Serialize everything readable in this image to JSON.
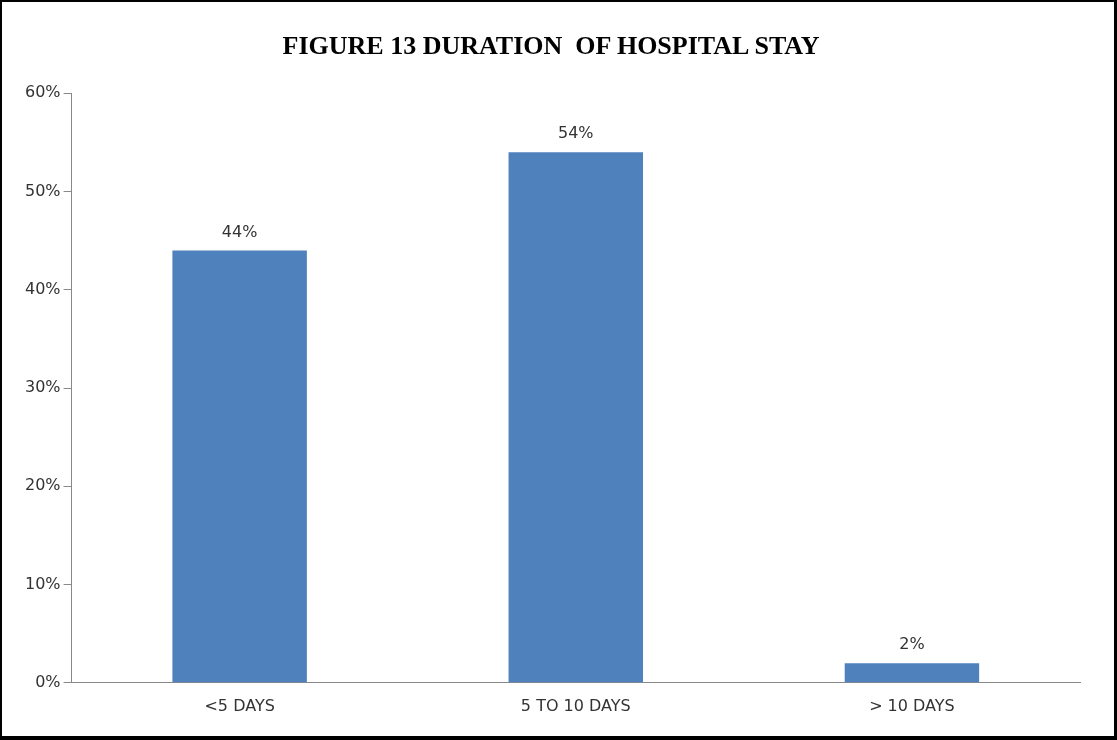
{
  "chart_data": {
    "type": "bar",
    "title": "FIGURE 13 DURATION  OF HOSPITAL STAY",
    "categories": [
      "<5 DAYS",
      "5 TO 10 DAYS",
      "> 10 DAYS"
    ],
    "values": [
      44,
      54,
      2
    ],
    "color": "#4f81bd",
    "value_labels": [
      "44%",
      "54%",
      "2%"
    ],
    "ylim": [
      0,
      60
    ],
    "yticks": [
      {
        "value": 0,
        "label": "0%"
      },
      {
        "value": 10,
        "label": "10%"
      },
      {
        "value": 20,
        "label": "20%"
      },
      {
        "value": 30,
        "label": "30%"
      },
      {
        "value": 40,
        "label": "40%"
      },
      {
        "value": 50,
        "label": "50%"
      },
      {
        "value": 60,
        "label": "60%"
      }
    ],
    "grid": false,
    "legend": false
  }
}
